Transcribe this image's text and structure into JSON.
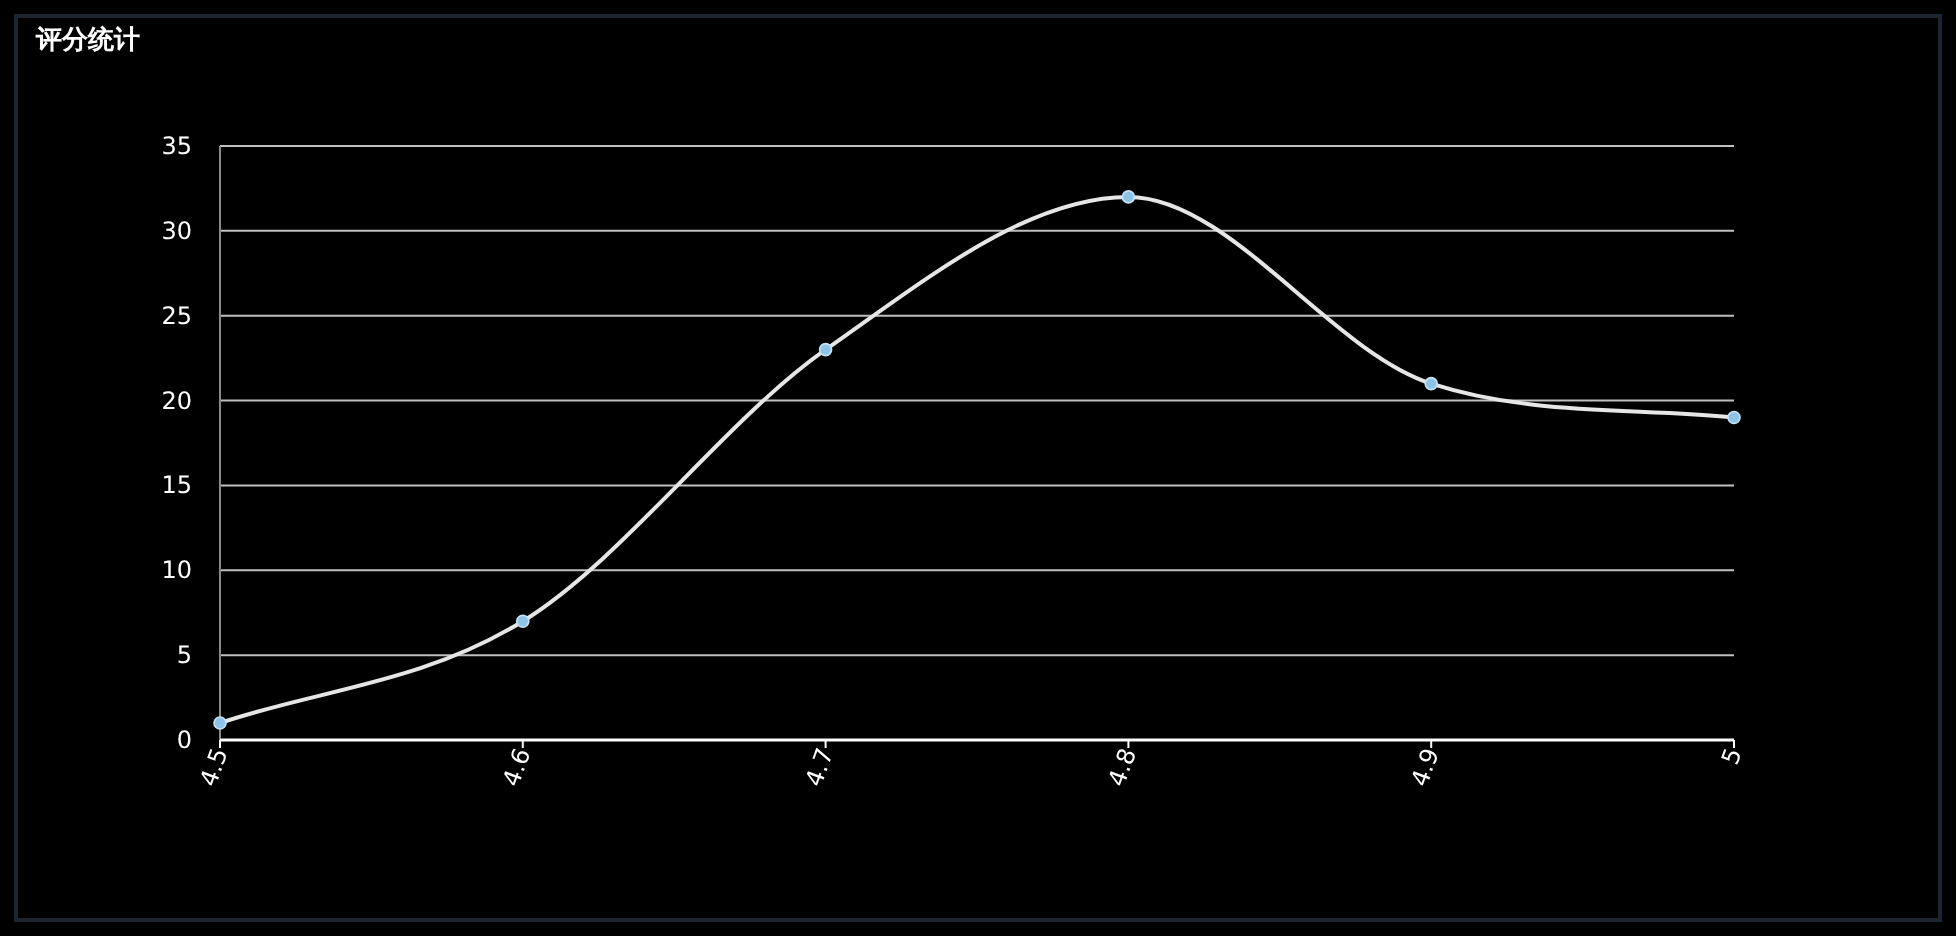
{
  "chart_data": {
    "type": "line",
    "title": "评分统计",
    "categories": [
      "4.5",
      "4.6",
      "4.7",
      "4.8",
      "4.9",
      "5"
    ],
    "series": [
      {
        "color": "#e6e6e6",
        "values": [
          1,
          7,
          23,
          32,
          21,
          19
        ]
      }
    ],
    "ylim": [
      0,
      35
    ],
    "yticks": [
      0,
      5,
      10,
      15,
      20,
      25,
      30,
      35
    ],
    "grid": "y",
    "marker": "circle"
  }
}
